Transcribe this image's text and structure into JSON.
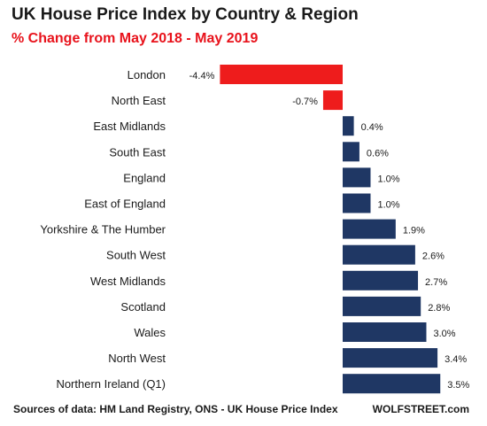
{
  "chart_data": {
    "type": "bar",
    "orientation": "horizontal",
    "title": "UK House Price Index by Country  & Region",
    "subtitle": "% Change from May 2018 - May 2019",
    "categories": [
      "London",
      "North East",
      "East Midlands",
      "South East",
      "England",
      "East of England",
      "Yorkshire & The Humber",
      "South West",
      "West Midlands",
      "Scotland",
      "Wales",
      "North West",
      "Northern Ireland (Q1)"
    ],
    "values": [
      -4.4,
      -0.7,
      0.4,
      0.6,
      1.0,
      1.0,
      1.9,
      2.6,
      2.7,
      2.8,
      3.0,
      3.4,
      3.5
    ],
    "data_labels": [
      "-4.4%",
      "-0.7%",
      "0.4%",
      "0.6%",
      "1.0%",
      "1.0%",
      "1.9%",
      "2.6%",
      "2.7%",
      "2.8%",
      "3.0%",
      "3.4%",
      "3.5%"
    ],
    "xlim": [
      -4.4,
      3.5
    ],
    "grid": false,
    "colors": {
      "negative": "#ee1c1c",
      "positive": "#1f3764"
    }
  },
  "footer": {
    "source": "Sources of data: HM Land Registry, ONS - UK House Price Index",
    "brand": "WOLFSTREET.com"
  }
}
